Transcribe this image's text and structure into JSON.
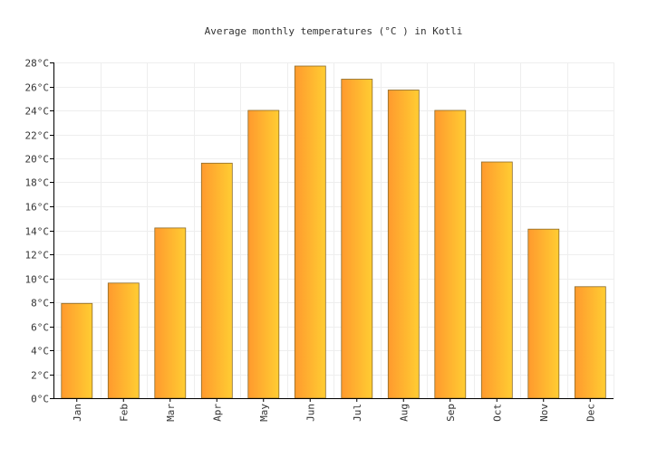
{
  "chart_data": {
    "type": "bar",
    "title": "Average monthly temperatures (°C ) in Kotli",
    "categories": [
      "Jan",
      "Feb",
      "Mar",
      "Apr",
      "May",
      "Jun",
      "Jul",
      "Aug",
      "Sep",
      "Oct",
      "Nov",
      "Dec"
    ],
    "values": [
      7.9,
      9.6,
      14.2,
      19.6,
      24.0,
      27.7,
      26.6,
      25.7,
      24.0,
      19.7,
      14.1,
      9.3
    ],
    "ylim": [
      0,
      28
    ],
    "y_ticks": [
      0,
      2,
      4,
      6,
      8,
      10,
      12,
      14,
      16,
      18,
      20,
      22,
      24,
      26,
      28
    ],
    "y_tick_suffix": "°C",
    "grid": true,
    "legend": "none",
    "colors": {
      "bar_start": "#ff9a2e",
      "bar_end": "#ffcd32",
      "bar_stroke": "#8a6a2a",
      "grid": "#eeeeee"
    }
  }
}
